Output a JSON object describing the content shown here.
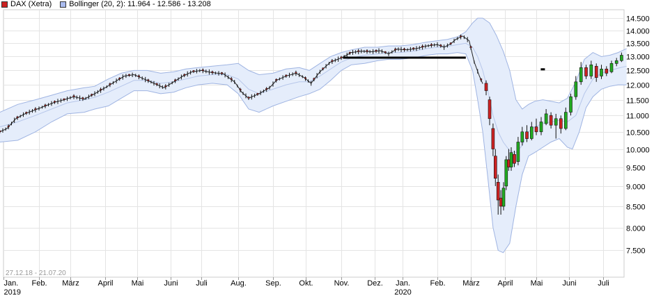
{
  "legend": {
    "main": {
      "label": "DAX (Xetra)",
      "color": "#cc2222"
    },
    "bollinger": {
      "label": "Bollinger (20, 2): 11.964 - 12.586 - 13.208",
      "color": "#aabbee"
    }
  },
  "date_range": "27.12.18 - 21.07.20",
  "chart_data": {
    "type": "candlestick",
    "title": "",
    "xlabel": "",
    "ylabel": "",
    "ylim": [
      6950,
      14850
    ],
    "y_scale": "log",
    "y_ticks": [
      "14.500",
      "14.000",
      "13.500",
      "13.000",
      "12.500",
      "12.000",
      "11.500",
      "11.000",
      "10.500",
      "10.000",
      "9.500",
      "9.000",
      "8.500",
      "8.000",
      "7.500"
    ],
    "y_tick_values": [
      14500,
      14000,
      13500,
      13000,
      12500,
      12000,
      11500,
      11000,
      10500,
      10000,
      9500,
      9000,
      8500,
      8000,
      7500
    ],
    "x_ticks": [
      {
        "label": "Jan.",
        "sub": "2019",
        "x": 0
      },
      {
        "label": "Feb.",
        "x": 1
      },
      {
        "label": "März",
        "x": 2
      },
      {
        "label": "April",
        "x": 3
      },
      {
        "label": "Mai",
        "x": 4
      },
      {
        "label": "Juni",
        "x": 5
      },
      {
        "label": "Juli",
        "x": 6
      },
      {
        "label": "Aug.",
        "x": 7
      },
      {
        "label": "Sep.",
        "x": 8
      },
      {
        "label": "Okt.",
        "x": 9
      },
      {
        "label": "Nov.",
        "x": 10
      },
      {
        "label": "Dez.",
        "x": 11
      },
      {
        "label": "Jan.",
        "sub": "2020",
        "x": 12
      },
      {
        "label": "Feb.",
        "x": 13
      },
      {
        "label": "März",
        "x": 14
      },
      {
        "label": "April",
        "x": 15
      },
      {
        "label": "Mai",
        "x": 16
      },
      {
        "label": "Juni",
        "x": 17
      },
      {
        "label": "Juli",
        "x": 18
      }
    ],
    "x_end": 18.7,
    "close_series": [
      [
        -0.1,
        10500
      ],
      [
        0.1,
        10600
      ],
      [
        0.35,
        10900
      ],
      [
        0.6,
        11050
      ],
      [
        0.9,
        11180
      ],
      [
        1.2,
        11300
      ],
      [
        1.5,
        11420
      ],
      [
        1.8,
        11500
      ],
      [
        2.1,
        11600
      ],
      [
        2.4,
        11520
      ],
      [
        2.7,
        11700
      ],
      [
        3.0,
        11900
      ],
      [
        3.3,
        12100
      ],
      [
        3.6,
        12300
      ],
      [
        3.9,
        12350
      ],
      [
        4.2,
        12200
      ],
      [
        4.5,
        12050
      ],
      [
        4.8,
        11900
      ],
      [
        5.1,
        12100
      ],
      [
        5.4,
        12300
      ],
      [
        5.7,
        12450
      ],
      [
        6.0,
        12500
      ],
      [
        6.3,
        12420
      ],
      [
        6.6,
        12380
      ],
      [
        6.9,
        12100
      ],
      [
        7.1,
        11750
      ],
      [
        7.3,
        11550
      ],
      [
        7.6,
        11700
      ],
      [
        7.9,
        11900
      ],
      [
        8.1,
        12150
      ],
      [
        8.4,
        12300
      ],
      [
        8.7,
        12400
      ],
      [
        8.95,
        12250
      ],
      [
        9.15,
        12050
      ],
      [
        9.4,
        12450
      ],
      [
        9.7,
        12800
      ],
      [
        10.0,
        12950
      ],
      [
        10.3,
        13150
      ],
      [
        10.6,
        13200
      ],
      [
        10.9,
        13180
      ],
      [
        11.2,
        13220
      ],
      [
        11.5,
        13100
      ],
      [
        11.8,
        13280
      ],
      [
        12.1,
        13250
      ],
      [
        12.4,
        13300
      ],
      [
        12.7,
        13400
      ],
      [
        13.0,
        13450
      ],
      [
        13.2,
        13350
      ],
      [
        13.4,
        13480
      ],
      [
        13.55,
        13650
      ],
      [
        13.75,
        13780
      ],
      [
        13.95,
        13600
      ],
      [
        14.1,
        12800
      ],
      [
        14.25,
        12300
      ],
      [
        14.4,
        11900
      ],
      [
        14.55,
        11000
      ],
      [
        14.7,
        10200
      ],
      [
        14.8,
        9400
      ],
      [
        14.9,
        8700
      ],
      [
        15.0,
        8500
      ],
      [
        15.15,
        9300
      ],
      [
        15.3,
        9800
      ],
      [
        15.45,
        9600
      ],
      [
        15.6,
        9900
      ],
      [
        15.75,
        10300
      ],
      [
        15.9,
        10500
      ],
      [
        16.05,
        10600
      ],
      [
        16.2,
        10400
      ],
      [
        16.35,
        10700
      ],
      [
        16.5,
        10800
      ],
      [
        16.65,
        10950
      ],
      [
        16.8,
        10800
      ],
      [
        16.95,
        10600
      ],
      [
        17.1,
        11000
      ],
      [
        17.25,
        11500
      ],
      [
        17.4,
        12300
      ],
      [
        17.55,
        12500
      ],
      [
        17.7,
        12700
      ],
      [
        17.85,
        12300
      ],
      [
        18.0,
        12500
      ],
      [
        18.15,
        12600
      ],
      [
        18.3,
        12800
      ],
      [
        18.5,
        12950
      ],
      [
        18.7,
        13100
      ]
    ],
    "candles": [
      {
        "x": 14.45,
        "o": 12050,
        "c": 11800,
        "h": 12150,
        "l": 11650,
        "dir": "down"
      },
      {
        "x": 14.55,
        "o": 11500,
        "c": 10900,
        "h": 11600,
        "l": 10700,
        "dir": "down"
      },
      {
        "x": 14.65,
        "o": 10600,
        "c": 10000,
        "h": 10750,
        "l": 9800,
        "dir": "down"
      },
      {
        "x": 14.72,
        "o": 9800,
        "c": 9200,
        "h": 10000,
        "l": 9000,
        "dir": "down"
      },
      {
        "x": 14.8,
        "o": 9100,
        "c": 8650,
        "h": 9300,
        "l": 8300,
        "dir": "down"
      },
      {
        "x": 14.88,
        "o": 8700,
        "c": 8500,
        "h": 8900,
        "l": 8300,
        "dir": "down"
      },
      {
        "x": 14.96,
        "o": 8500,
        "c": 8950,
        "h": 9100,
        "l": 8400,
        "dir": "up"
      },
      {
        "x": 15.04,
        "o": 9000,
        "c": 9700,
        "h": 9800,
        "l": 8900,
        "dir": "up"
      },
      {
        "x": 15.12,
        "o": 9700,
        "c": 9500,
        "h": 10000,
        "l": 9400,
        "dir": "down"
      },
      {
        "x": 15.2,
        "o": 9500,
        "c": 9900,
        "h": 10050,
        "l": 9400,
        "dir": "up"
      },
      {
        "x": 15.3,
        "o": 9850,
        "c": 9600,
        "h": 9950,
        "l": 9500,
        "dir": "down"
      },
      {
        "x": 15.42,
        "o": 9650,
        "c": 10200,
        "h": 10350,
        "l": 9550,
        "dir": "up"
      },
      {
        "x": 15.55,
        "o": 10200,
        "c": 10500,
        "h": 10650,
        "l": 10100,
        "dir": "up"
      },
      {
        "x": 15.7,
        "o": 10500,
        "c": 10300,
        "h": 10700,
        "l": 10200,
        "dir": "down"
      },
      {
        "x": 15.85,
        "o": 10300,
        "c": 10650,
        "h": 10800,
        "l": 10250,
        "dir": "up"
      },
      {
        "x": 16.0,
        "o": 10650,
        "c": 10500,
        "h": 10900,
        "l": 10400,
        "dir": "down"
      },
      {
        "x": 16.15,
        "o": 10500,
        "c": 10800,
        "h": 10950,
        "l": 10400,
        "dir": "up"
      },
      {
        "x": 16.3,
        "o": 10750,
        "c": 11050,
        "h": 11200,
        "l": 10700,
        "dir": "up"
      },
      {
        "x": 16.45,
        "o": 11000,
        "c": 10700,
        "h": 11100,
        "l": 10600,
        "dir": "down"
      },
      {
        "x": 16.6,
        "o": 10700,
        "c": 10900,
        "h": 11050,
        "l": 10300,
        "dir": "up"
      },
      {
        "x": 16.75,
        "o": 10900,
        "c": 10600,
        "h": 11000,
        "l": 10450,
        "dir": "down"
      },
      {
        "x": 16.9,
        "o": 10600,
        "c": 11100,
        "h": 11250,
        "l": 10550,
        "dir": "up"
      },
      {
        "x": 17.05,
        "o": 11100,
        "c": 11600,
        "h": 11700,
        "l": 11000,
        "dir": "up"
      },
      {
        "x": 17.2,
        "o": 11600,
        "c": 12100,
        "h": 12300,
        "l": 11500,
        "dir": "up"
      },
      {
        "x": 17.35,
        "o": 12100,
        "c": 12600,
        "h": 12800,
        "l": 12000,
        "dir": "up"
      },
      {
        "x": 17.5,
        "o": 12600,
        "c": 12300,
        "h": 12700,
        "l": 12200,
        "dir": "down"
      },
      {
        "x": 17.65,
        "o": 12300,
        "c": 12700,
        "h": 12850,
        "l": 12200,
        "dir": "up"
      },
      {
        "x": 17.8,
        "o": 12650,
        "c": 12250,
        "h": 12750,
        "l": 12100,
        "dir": "down"
      },
      {
        "x": 17.95,
        "o": 12300,
        "c": 12550,
        "h": 12700,
        "l": 12200,
        "dir": "up"
      },
      {
        "x": 18.1,
        "o": 12550,
        "c": 12400,
        "h": 12650,
        "l": 12300,
        "dir": "down"
      },
      {
        "x": 18.25,
        "o": 12450,
        "c": 12750,
        "h": 12850,
        "l": 12400,
        "dir": "up"
      },
      {
        "x": 18.4,
        "o": 12750,
        "c": 12850,
        "h": 12950,
        "l": 12650,
        "dir": "up"
      },
      {
        "x": 18.55,
        "o": 12850,
        "c": 13050,
        "h": 13150,
        "l": 12800,
        "dir": "up"
      }
    ],
    "upper_band": [
      [
        -0.1,
        11100
      ],
      [
        0.4,
        11350
      ],
      [
        0.9,
        11500
      ],
      [
        1.4,
        11650
      ],
      [
        1.9,
        11800
      ],
      [
        2.4,
        11900
      ],
      [
        2.7,
        11950
      ],
      [
        3.1,
        12200
      ],
      [
        3.5,
        12400
      ],
      [
        3.9,
        12500
      ],
      [
        4.3,
        12500
      ],
      [
        4.7,
        12400
      ],
      [
        5.1,
        12450
      ],
      [
        5.5,
        12550
      ],
      [
        5.9,
        12600
      ],
      [
        6.3,
        12650
      ],
      [
        6.7,
        12700
      ],
      [
        7.0,
        12750
      ],
      [
        7.3,
        12500
      ],
      [
        7.6,
        12350
      ],
      [
        8.0,
        12400
      ],
      [
        8.4,
        12550
      ],
      [
        8.8,
        12600
      ],
      [
        9.1,
        12500
      ],
      [
        9.4,
        12750
      ],
      [
        9.7,
        13000
      ],
      [
        10.0,
        13150
      ],
      [
        10.3,
        13250
      ],
      [
        10.7,
        13350
      ],
      [
        11.1,
        13350
      ],
      [
        11.5,
        13400
      ],
      [
        11.9,
        13400
      ],
      [
        12.3,
        13450
      ],
      [
        12.7,
        13550
      ],
      [
        13.0,
        13600
      ],
      [
        13.3,
        13650
      ],
      [
        13.6,
        13750
      ],
      [
        13.85,
        13950
      ],
      [
        14.05,
        14300
      ],
      [
        14.2,
        14500
      ],
      [
        14.35,
        14500
      ],
      [
        14.55,
        14300
      ],
      [
        14.75,
        13800
      ],
      [
        14.95,
        13200
      ],
      [
        15.15,
        12500
      ],
      [
        15.35,
        11500
      ],
      [
        15.55,
        11200
      ],
      [
        15.75,
        11350
      ],
      [
        15.95,
        11450
      ],
      [
        16.2,
        11500
      ],
      [
        16.45,
        11450
      ],
      [
        16.7,
        11400
      ],
      [
        16.95,
        11550
      ],
      [
        17.2,
        12100
      ],
      [
        17.45,
        12900
      ],
      [
        17.7,
        13150
      ],
      [
        17.95,
        13000
      ],
      [
        18.2,
        13050
      ],
      [
        18.45,
        13150
      ],
      [
        18.7,
        13300
      ]
    ],
    "lower_band": [
      [
        -0.1,
        10200
      ],
      [
        0.4,
        10250
      ],
      [
        0.9,
        10500
      ],
      [
        1.4,
        10800
      ],
      [
        1.9,
        11050
      ],
      [
        2.4,
        11100
      ],
      [
        2.7,
        11200
      ],
      [
        3.1,
        11300
      ],
      [
        3.5,
        11550
      ],
      [
        3.9,
        11800
      ],
      [
        4.3,
        11800
      ],
      [
        4.7,
        11700
      ],
      [
        5.1,
        11750
      ],
      [
        5.5,
        11900
      ],
      [
        5.9,
        12000
      ],
      [
        6.3,
        12050
      ],
      [
        6.7,
        12000
      ],
      [
        7.0,
        11700
      ],
      [
        7.3,
        11200
      ],
      [
        7.6,
        11100
      ],
      [
        8.0,
        11300
      ],
      [
        8.4,
        11450
      ],
      [
        8.8,
        11600
      ],
      [
        9.1,
        11700
      ],
      [
        9.4,
        11850
      ],
      [
        9.7,
        12150
      ],
      [
        10.0,
        12500
      ],
      [
        10.3,
        12700
      ],
      [
        10.7,
        12750
      ],
      [
        11.1,
        12850
      ],
      [
        11.5,
        12900
      ],
      [
        11.9,
        12900
      ],
      [
        12.3,
        12950
      ],
      [
        12.7,
        13050
      ],
      [
        13.0,
        13100
      ],
      [
        13.3,
        13100
      ],
      [
        13.6,
        13150
      ],
      [
        13.85,
        13100
      ],
      [
        14.05,
        12500
      ],
      [
        14.2,
        11500
      ],
      [
        14.35,
        10500
      ],
      [
        14.5,
        9200
      ],
      [
        14.65,
        8000
      ],
      [
        14.8,
        7500
      ],
      [
        14.95,
        7450
      ],
      [
        15.15,
        7650
      ],
      [
        15.35,
        8500
      ],
      [
        15.55,
        9300
      ],
      [
        15.75,
        9800
      ],
      [
        15.95,
        9900
      ],
      [
        16.2,
        10050
      ],
      [
        16.45,
        10200
      ],
      [
        16.7,
        10300
      ],
      [
        16.95,
        10050
      ],
      [
        17.1,
        10000
      ],
      [
        17.3,
        10500
      ],
      [
        17.5,
        11250
      ],
      [
        17.7,
        11600
      ],
      [
        17.95,
        11850
      ],
      [
        18.2,
        11950
      ],
      [
        18.45,
        12000
      ],
      [
        18.7,
        12000
      ]
    ],
    "mid_band": [
      [
        -0.1,
        10650
      ],
      [
        0.4,
        10800
      ],
      [
        0.9,
        11000
      ],
      [
        1.4,
        11200
      ],
      [
        1.9,
        11400
      ],
      [
        2.4,
        11500
      ],
      [
        2.7,
        11580
      ],
      [
        3.1,
        11750
      ],
      [
        3.5,
        11950
      ],
      [
        3.9,
        12150
      ],
      [
        4.3,
        12150
      ],
      [
        4.7,
        12050
      ],
      [
        5.1,
        12100
      ],
      [
        5.5,
        12200
      ],
      [
        5.9,
        12300
      ],
      [
        6.3,
        12350
      ],
      [
        6.7,
        12350
      ],
      [
        7.0,
        12200
      ],
      [
        7.3,
        11850
      ],
      [
        7.6,
        11700
      ],
      [
        8.0,
        11850
      ],
      [
        8.4,
        12000
      ],
      [
        8.8,
        12100
      ],
      [
        9.1,
        12100
      ],
      [
        9.4,
        12300
      ],
      [
        9.7,
        12550
      ],
      [
        10.0,
        12800
      ],
      [
        10.3,
        12950
      ],
      [
        10.7,
        13050
      ],
      [
        11.1,
        13100
      ],
      [
        11.5,
        13150
      ],
      [
        11.9,
        13150
      ],
      [
        12.3,
        13200
      ],
      [
        12.7,
        13300
      ],
      [
        13.0,
        13350
      ],
      [
        13.3,
        13380
      ],
      [
        13.6,
        13450
      ],
      [
        13.85,
        13500
      ],
      [
        14.05,
        13350
      ],
      [
        14.2,
        13000
      ],
      [
        14.35,
        12500
      ],
      [
        14.5,
        11800
      ],
      [
        14.65,
        11000
      ],
      [
        14.8,
        10500
      ],
      [
        14.95,
        10200
      ],
      [
        15.15,
        9950
      ],
      [
        15.35,
        9900
      ],
      [
        15.55,
        10100
      ],
      [
        15.75,
        10500
      ],
      [
        15.95,
        10650
      ],
      [
        16.2,
        10750
      ],
      [
        16.45,
        10800
      ],
      [
        16.7,
        10850
      ],
      [
        16.95,
        10800
      ],
      [
        17.2,
        11000
      ],
      [
        17.45,
        11700
      ],
      [
        17.7,
        12200
      ],
      [
        17.95,
        12400
      ],
      [
        18.2,
        12500
      ],
      [
        18.45,
        12580
      ],
      [
        18.7,
        12650
      ]
    ],
    "resistance_line": {
      "x_start": 10.05,
      "x_end": 13.85,
      "value": 12960
    },
    "marker": {
      "x": 16.2,
      "value": 12550
    }
  }
}
